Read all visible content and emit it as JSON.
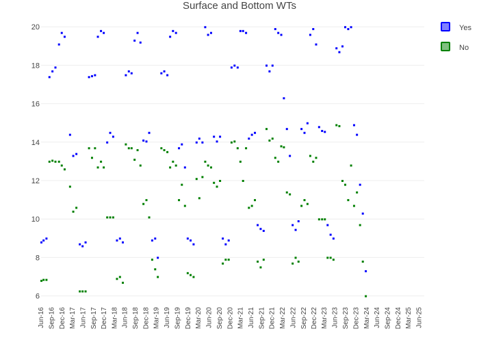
{
  "chart_data": {
    "type": "scatter",
    "title": "Surface and Bottom WTs",
    "xlabel": "",
    "ylabel": "",
    "ylim": [
      5.7,
      20.4
    ],
    "yticks": [
      6,
      8,
      10,
      12,
      14,
      16,
      18,
      20
    ],
    "x_tick_labels": [
      "Jun-16",
      "Sep-16",
      "Dec-16",
      "Mar-17",
      "Jun-17",
      "Sep-17",
      "Dec-17",
      "Mar-18",
      "Jun-18",
      "Sep-18",
      "Dec-18",
      "Mar-19",
      "Jun-19",
      "Sep-19",
      "Dec-19",
      "Mar-20",
      "Jun-20",
      "Sep-20",
      "Dec-20",
      "Mar-21",
      "Jun-21",
      "Sep-21",
      "Dec-21",
      "Mar-22",
      "Jun-22",
      "Sep-22",
      "Dec-22",
      "Mar-23",
      "Jun-23",
      "Sep-23",
      "Dec-23",
      "Mar-24",
      "Jun-24",
      "Sep-24",
      "Dec-24",
      "Mar-25",
      "Jun-25"
    ],
    "grid": true,
    "legend_position": "top-right",
    "series": [
      {
        "name": "Yes",
        "color": "#0000ff",
        "legend_fill": "#8080ff",
        "points": [
          [
            "2016-06-01",
            8.8
          ],
          [
            "2016-06-20",
            8.9
          ],
          [
            "2016-07-15",
            9.0
          ],
          [
            "2016-08-10",
            17.4
          ],
          [
            "2016-09-05",
            17.7
          ],
          [
            "2016-10-01",
            17.9
          ],
          [
            "2016-11-01",
            19.1
          ],
          [
            "2016-11-25",
            19.7
          ],
          [
            "2016-12-20",
            19.5
          ],
          [
            "2017-02-05",
            14.4
          ],
          [
            "2017-03-05",
            13.3
          ],
          [
            "2017-04-01",
            13.4
          ],
          [
            "2017-05-01",
            8.7
          ],
          [
            "2017-05-25",
            8.6
          ],
          [
            "2017-06-20",
            8.8
          ],
          [
            "2017-07-20",
            17.4
          ],
          [
            "2017-08-15",
            17.45
          ],
          [
            "2017-09-10",
            17.5
          ],
          [
            "2017-10-05",
            19.5
          ],
          [
            "2017-11-01",
            19.8
          ],
          [
            "2017-11-25",
            19.7
          ],
          [
            "2017-12-25",
            14.0
          ],
          [
            "2018-01-20",
            14.5
          ],
          [
            "2018-02-15",
            14.3
          ],
          [
            "2018-03-20",
            8.9
          ],
          [
            "2018-04-15",
            9.0
          ],
          [
            "2018-05-10",
            8.8
          ],
          [
            "2018-06-05",
            17.5
          ],
          [
            "2018-07-01",
            17.7
          ],
          [
            "2018-07-25",
            17.6
          ],
          [
            "2018-08-20",
            19.3
          ],
          [
            "2018-09-15",
            19.7
          ],
          [
            "2018-10-10",
            19.2
          ],
          [
            "2018-11-05",
            14.1
          ],
          [
            "2018-12-01",
            14.05
          ],
          [
            "2018-12-25",
            14.5
          ],
          [
            "2019-01-20",
            8.9
          ],
          [
            "2019-02-15",
            9.0
          ],
          [
            "2019-03-10",
            8.0
          ],
          [
            "2019-04-10",
            17.6
          ],
          [
            "2019-05-05",
            17.7
          ],
          [
            "2019-06-01",
            17.5
          ],
          [
            "2019-06-25",
            19.5
          ],
          [
            "2019-07-20",
            19.8
          ],
          [
            "2019-08-15",
            19.7
          ],
          [
            "2019-09-10",
            13.7
          ],
          [
            "2019-10-05",
            13.9
          ],
          [
            "2019-11-01",
            12.7
          ],
          [
            "2019-11-25",
            9.0
          ],
          [
            "2019-12-20",
            8.9
          ],
          [
            "2020-01-15",
            8.7
          ],
          [
            "2020-02-10",
            14.0
          ],
          [
            "2020-03-05",
            14.2
          ],
          [
            "2020-04-01",
            14.0
          ],
          [
            "2020-04-25",
            20.0
          ],
          [
            "2020-05-20",
            19.6
          ],
          [
            "2020-06-15",
            19.7
          ],
          [
            "2020-07-10",
            14.3
          ],
          [
            "2020-08-05",
            14.05
          ],
          [
            "2020-09-01",
            14.3
          ],
          [
            "2020-09-25",
            9.0
          ],
          [
            "2020-10-20",
            8.7
          ],
          [
            "2020-11-15",
            8.9
          ],
          [
            "2020-12-10",
            17.9
          ],
          [
            "2021-01-05",
            18.0
          ],
          [
            "2021-02-01",
            17.9
          ],
          [
            "2021-02-25",
            19.8
          ],
          [
            "2021-03-20",
            19.8
          ],
          [
            "2021-04-15",
            19.7
          ],
          [
            "2021-05-10",
            14.2
          ],
          [
            "2021-06-05",
            14.4
          ],
          [
            "2021-07-01",
            14.5
          ],
          [
            "2021-07-25",
            9.7
          ],
          [
            "2021-08-20",
            9.5
          ],
          [
            "2021-09-15",
            9.4
          ],
          [
            "2021-10-10",
            18.0
          ],
          [
            "2021-11-05",
            17.7
          ],
          [
            "2021-12-01",
            18.0
          ],
          [
            "2021-12-25",
            19.9
          ],
          [
            "2022-01-20",
            19.7
          ],
          [
            "2022-02-15",
            19.6
          ],
          [
            "2022-03-10",
            16.3
          ],
          [
            "2022-04-05",
            14.7
          ],
          [
            "2022-05-01",
            13.3
          ],
          [
            "2022-05-25",
            9.7
          ],
          [
            "2022-06-20",
            9.45
          ],
          [
            "2022-07-15",
            9.9
          ],
          [
            "2022-08-10",
            14.7
          ],
          [
            "2022-09-05",
            14.5
          ],
          [
            "2022-10-01",
            15.0
          ],
          [
            "2022-10-25",
            19.6
          ],
          [
            "2022-11-20",
            19.9
          ],
          [
            "2022-12-15",
            19.1
          ],
          [
            "2023-01-10",
            14.8
          ],
          [
            "2023-02-05",
            14.6
          ],
          [
            "2023-03-01",
            14.55
          ],
          [
            "2023-03-25",
            9.7
          ],
          [
            "2023-04-20",
            9.2
          ],
          [
            "2023-05-15",
            9.0
          ],
          [
            "2023-06-10",
            18.9
          ],
          [
            "2023-07-05",
            18.7
          ],
          [
            "2023-08-01",
            19.0
          ],
          [
            "2023-08-25",
            20.0
          ],
          [
            "2023-09-20",
            19.9
          ],
          [
            "2023-10-15",
            20.0
          ],
          [
            "2023-11-10",
            14.9
          ],
          [
            "2023-12-05",
            14.4
          ],
          [
            "2024-01-01",
            11.8
          ],
          [
            "2024-01-25",
            10.3
          ],
          [
            "2024-02-20",
            7.3
          ]
        ]
      },
      {
        "name": "No",
        "color": "#008000",
        "legend_fill": "#80c080",
        "points": [
          [
            "2016-06-01",
            6.8
          ],
          [
            "2016-06-20",
            6.85
          ],
          [
            "2016-07-15",
            6.85
          ],
          [
            "2016-08-10",
            13.0
          ],
          [
            "2016-09-05",
            13.05
          ],
          [
            "2016-10-01",
            13.0
          ],
          [
            "2016-11-01",
            13.0
          ],
          [
            "2016-11-25",
            12.8
          ],
          [
            "2016-12-20",
            12.6
          ],
          [
            "2017-02-05",
            11.7
          ],
          [
            "2017-03-05",
            10.4
          ],
          [
            "2017-04-01",
            10.6
          ],
          [
            "2017-05-01",
            6.25
          ],
          [
            "2017-05-25",
            6.25
          ],
          [
            "2017-06-20",
            6.25
          ],
          [
            "2017-07-20",
            13.7
          ],
          [
            "2017-08-15",
            13.2
          ],
          [
            "2017-09-10",
            13.7
          ],
          [
            "2017-10-05",
            12.7
          ],
          [
            "2017-11-01",
            13.0
          ],
          [
            "2017-11-25",
            12.7
          ],
          [
            "2017-12-25",
            10.1
          ],
          [
            "2018-01-20",
            10.1
          ],
          [
            "2018-02-15",
            10.1
          ],
          [
            "2018-03-20",
            6.9
          ],
          [
            "2018-04-15",
            7.0
          ],
          [
            "2018-05-10",
            6.7
          ],
          [
            "2018-06-05",
            13.9
          ],
          [
            "2018-07-01",
            13.7
          ],
          [
            "2018-07-25",
            13.7
          ],
          [
            "2018-08-20",
            13.1
          ],
          [
            "2018-09-15",
            13.6
          ],
          [
            "2018-10-10",
            12.8
          ],
          [
            "2018-11-05",
            10.8
          ],
          [
            "2018-12-01",
            11.0
          ],
          [
            "2018-12-25",
            10.1
          ],
          [
            "2019-01-20",
            7.9
          ],
          [
            "2019-02-15",
            7.4
          ],
          [
            "2019-03-10",
            7.0
          ],
          [
            "2019-04-10",
            13.7
          ],
          [
            "2019-05-05",
            13.6
          ],
          [
            "2019-06-01",
            13.5
          ],
          [
            "2019-06-25",
            12.7
          ],
          [
            "2019-07-20",
            13.0
          ],
          [
            "2019-08-15",
            12.8
          ],
          [
            "2019-09-10",
            11.0
          ],
          [
            "2019-10-05",
            11.8
          ],
          [
            "2019-11-01",
            10.7
          ],
          [
            "2019-11-25",
            7.2
          ],
          [
            "2019-12-20",
            7.1
          ],
          [
            "2020-01-15",
            7.0
          ],
          [
            "2020-02-10",
            12.1
          ],
          [
            "2020-03-05",
            11.1
          ],
          [
            "2020-04-01",
            12.2
          ],
          [
            "2020-04-25",
            13.0
          ],
          [
            "2020-05-20",
            12.8
          ],
          [
            "2020-06-15",
            12.7
          ],
          [
            "2020-07-10",
            11.9
          ],
          [
            "2020-08-05",
            11.7
          ],
          [
            "2020-09-01",
            12.0
          ],
          [
            "2020-09-25",
            7.7
          ],
          [
            "2020-10-20",
            7.9
          ],
          [
            "2020-11-15",
            7.9
          ],
          [
            "2020-12-10",
            14.0
          ],
          [
            "2021-01-05",
            14.05
          ],
          [
            "2021-02-01",
            13.7
          ],
          [
            "2021-02-25",
            13.0
          ],
          [
            "2021-03-20",
            12.0
          ],
          [
            "2021-04-15",
            13.7
          ],
          [
            "2021-05-10",
            10.6
          ],
          [
            "2021-06-05",
            10.7
          ],
          [
            "2021-07-01",
            11.0
          ],
          [
            "2021-07-25",
            7.8
          ],
          [
            "2021-08-20",
            7.5
          ],
          [
            "2021-09-15",
            7.9
          ],
          [
            "2021-10-10",
            14.7
          ],
          [
            "2021-11-05",
            14.1
          ],
          [
            "2021-12-01",
            14.2
          ],
          [
            "2021-12-25",
            13.2
          ],
          [
            "2022-01-20",
            13.0
          ],
          [
            "2022-02-15",
            13.8
          ],
          [
            "2022-03-10",
            13.75
          ],
          [
            "2022-04-05",
            11.4
          ],
          [
            "2022-05-01",
            11.3
          ],
          [
            "2022-05-25",
            7.7
          ],
          [
            "2022-06-20",
            8.0
          ],
          [
            "2022-07-15",
            7.8
          ],
          [
            "2022-08-10",
            10.7
          ],
          [
            "2022-09-05",
            11.0
          ],
          [
            "2022-10-01",
            10.8
          ],
          [
            "2022-10-25",
            13.3
          ],
          [
            "2022-11-20",
            13.0
          ],
          [
            "2022-12-15",
            13.2
          ],
          [
            "2023-01-10",
            10.0
          ],
          [
            "2023-02-05",
            10.0
          ],
          [
            "2023-03-01",
            10.0
          ],
          [
            "2023-03-25",
            8.0
          ],
          [
            "2023-04-20",
            8.0
          ],
          [
            "2023-05-15",
            7.9
          ],
          [
            "2023-06-10",
            14.9
          ],
          [
            "2023-07-05",
            14.85
          ],
          [
            "2023-08-01",
            12.0
          ],
          [
            "2023-08-25",
            11.8
          ],
          [
            "2023-09-20",
            11.0
          ],
          [
            "2023-10-15",
            12.8
          ],
          [
            "2023-11-10",
            10.7
          ],
          [
            "2023-12-05",
            11.4
          ],
          [
            "2024-01-01",
            9.7
          ],
          [
            "2024-01-25",
            7.8
          ],
          [
            "2024-02-20",
            6.0
          ]
        ]
      }
    ]
  }
}
